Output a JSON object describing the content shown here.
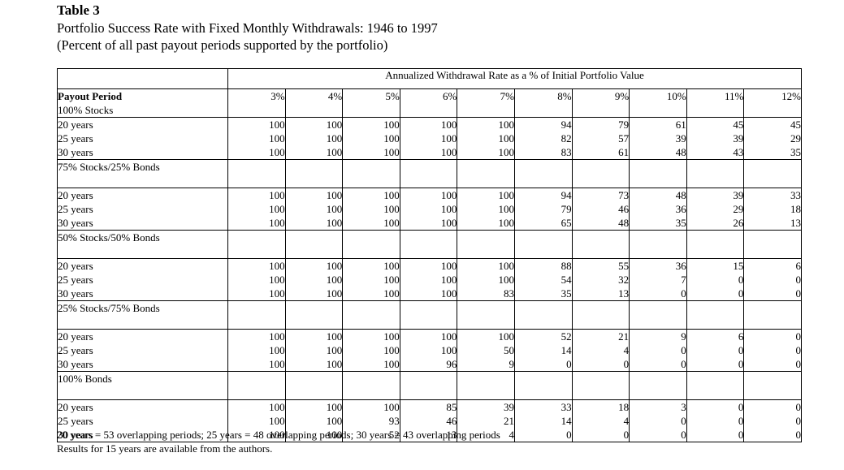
{
  "title": "Table 3",
  "subtitle_line1": "Portfolio Success Rate with Fixed Monthly Withdrawals: 1946 to 1997",
  "subtitle_line2": "(Percent of all past payout periods supported by the portfolio)",
  "column_group_header": "Annualized Withdrawal Rate as a % of Initial Portfolio Value",
  "row_header": "Payout Period",
  "rates": [
    "3%",
    "4%",
    "5%",
    "6%",
    "7%",
    "8%",
    "9%",
    "10%",
    "11%",
    "12%"
  ],
  "allocations": [
    {
      "name": "100% Stocks",
      "periods": [
        "20 years",
        "25 years",
        "30 years"
      ],
      "cols": [
        [
          "100",
          "100",
          "100"
        ],
        [
          "100",
          "100",
          "100"
        ],
        [
          "100",
          "100",
          "100"
        ],
        [
          "100",
          "100",
          "100"
        ],
        [
          "100",
          "100",
          "100"
        ],
        [
          "94",
          "82",
          "83"
        ],
        [
          "79",
          "57",
          "61"
        ],
        [
          "61",
          "39",
          "48"
        ],
        [
          "45",
          "39",
          "43"
        ],
        [
          "45",
          "29",
          "35"
        ]
      ]
    },
    {
      "name": "75% Stocks/25% Bonds",
      "periods": [
        "20 years",
        "25 years",
        "30 years"
      ],
      "cols": [
        [
          "100",
          "100",
          "100"
        ],
        [
          "100",
          "100",
          "100"
        ],
        [
          "100",
          "100",
          "100"
        ],
        [
          "100",
          "100",
          "100"
        ],
        [
          "100",
          "100",
          "100"
        ],
        [
          "94",
          "79",
          "65"
        ],
        [
          "73",
          "46",
          "48"
        ],
        [
          "48",
          "36",
          "35"
        ],
        [
          "39",
          "29",
          "26"
        ],
        [
          "33",
          "18",
          "13"
        ]
      ]
    },
    {
      "name": "50% Stocks/50% Bonds",
      "periods": [
        "20 years",
        "25 years",
        "30 years"
      ],
      "cols": [
        [
          "100",
          "100",
          "100"
        ],
        [
          "100",
          "100",
          "100"
        ],
        [
          "100",
          "100",
          "100"
        ],
        [
          "100",
          "100",
          "100"
        ],
        [
          "100",
          "100",
          "83"
        ],
        [
          "88",
          "54",
          "35"
        ],
        [
          "55",
          "32",
          "13"
        ],
        [
          "36",
          "7",
          "0"
        ],
        [
          "15",
          "0",
          "0"
        ],
        [
          "6",
          "0",
          "0"
        ]
      ]
    },
    {
      "name": "25% Stocks/75% Bonds",
      "periods": [
        "20 years",
        "25 years",
        "30 years"
      ],
      "cols": [
        [
          "100",
          "100",
          "100"
        ],
        [
          "100",
          "100",
          "100"
        ],
        [
          "100",
          "100",
          "100"
        ],
        [
          "100",
          "100",
          "96"
        ],
        [
          "100",
          "50",
          "9"
        ],
        [
          "52",
          "14",
          "0"
        ],
        [
          "21",
          "4",
          "0"
        ],
        [
          "9",
          "0",
          "0"
        ],
        [
          "6",
          "0",
          "0"
        ],
        [
          "0",
          "0",
          "0"
        ]
      ]
    },
    {
      "name": "100% Bonds",
      "periods": [
        "20 years",
        "25 years",
        "30 years"
      ],
      "cols": [
        [
          "100",
          "100",
          "100"
        ],
        [
          "100",
          "100",
          "100"
        ],
        [
          "100",
          "93",
          "52"
        ],
        [
          "85",
          "46",
          "13"
        ],
        [
          "39",
          "21",
          "4"
        ],
        [
          "33",
          "14",
          "0"
        ],
        [
          "18",
          "4",
          "0"
        ],
        [
          "3",
          "0",
          "0"
        ],
        [
          "0",
          "0",
          "0"
        ],
        [
          "0",
          "0",
          "0"
        ]
      ]
    }
  ],
  "footnote1": "20 years = 53 overlapping periods; 25 years = 48 overlapping periods; 30 years = 43 overlapping periods",
  "footnote2": "Results for 15 years are available from the authors."
}
